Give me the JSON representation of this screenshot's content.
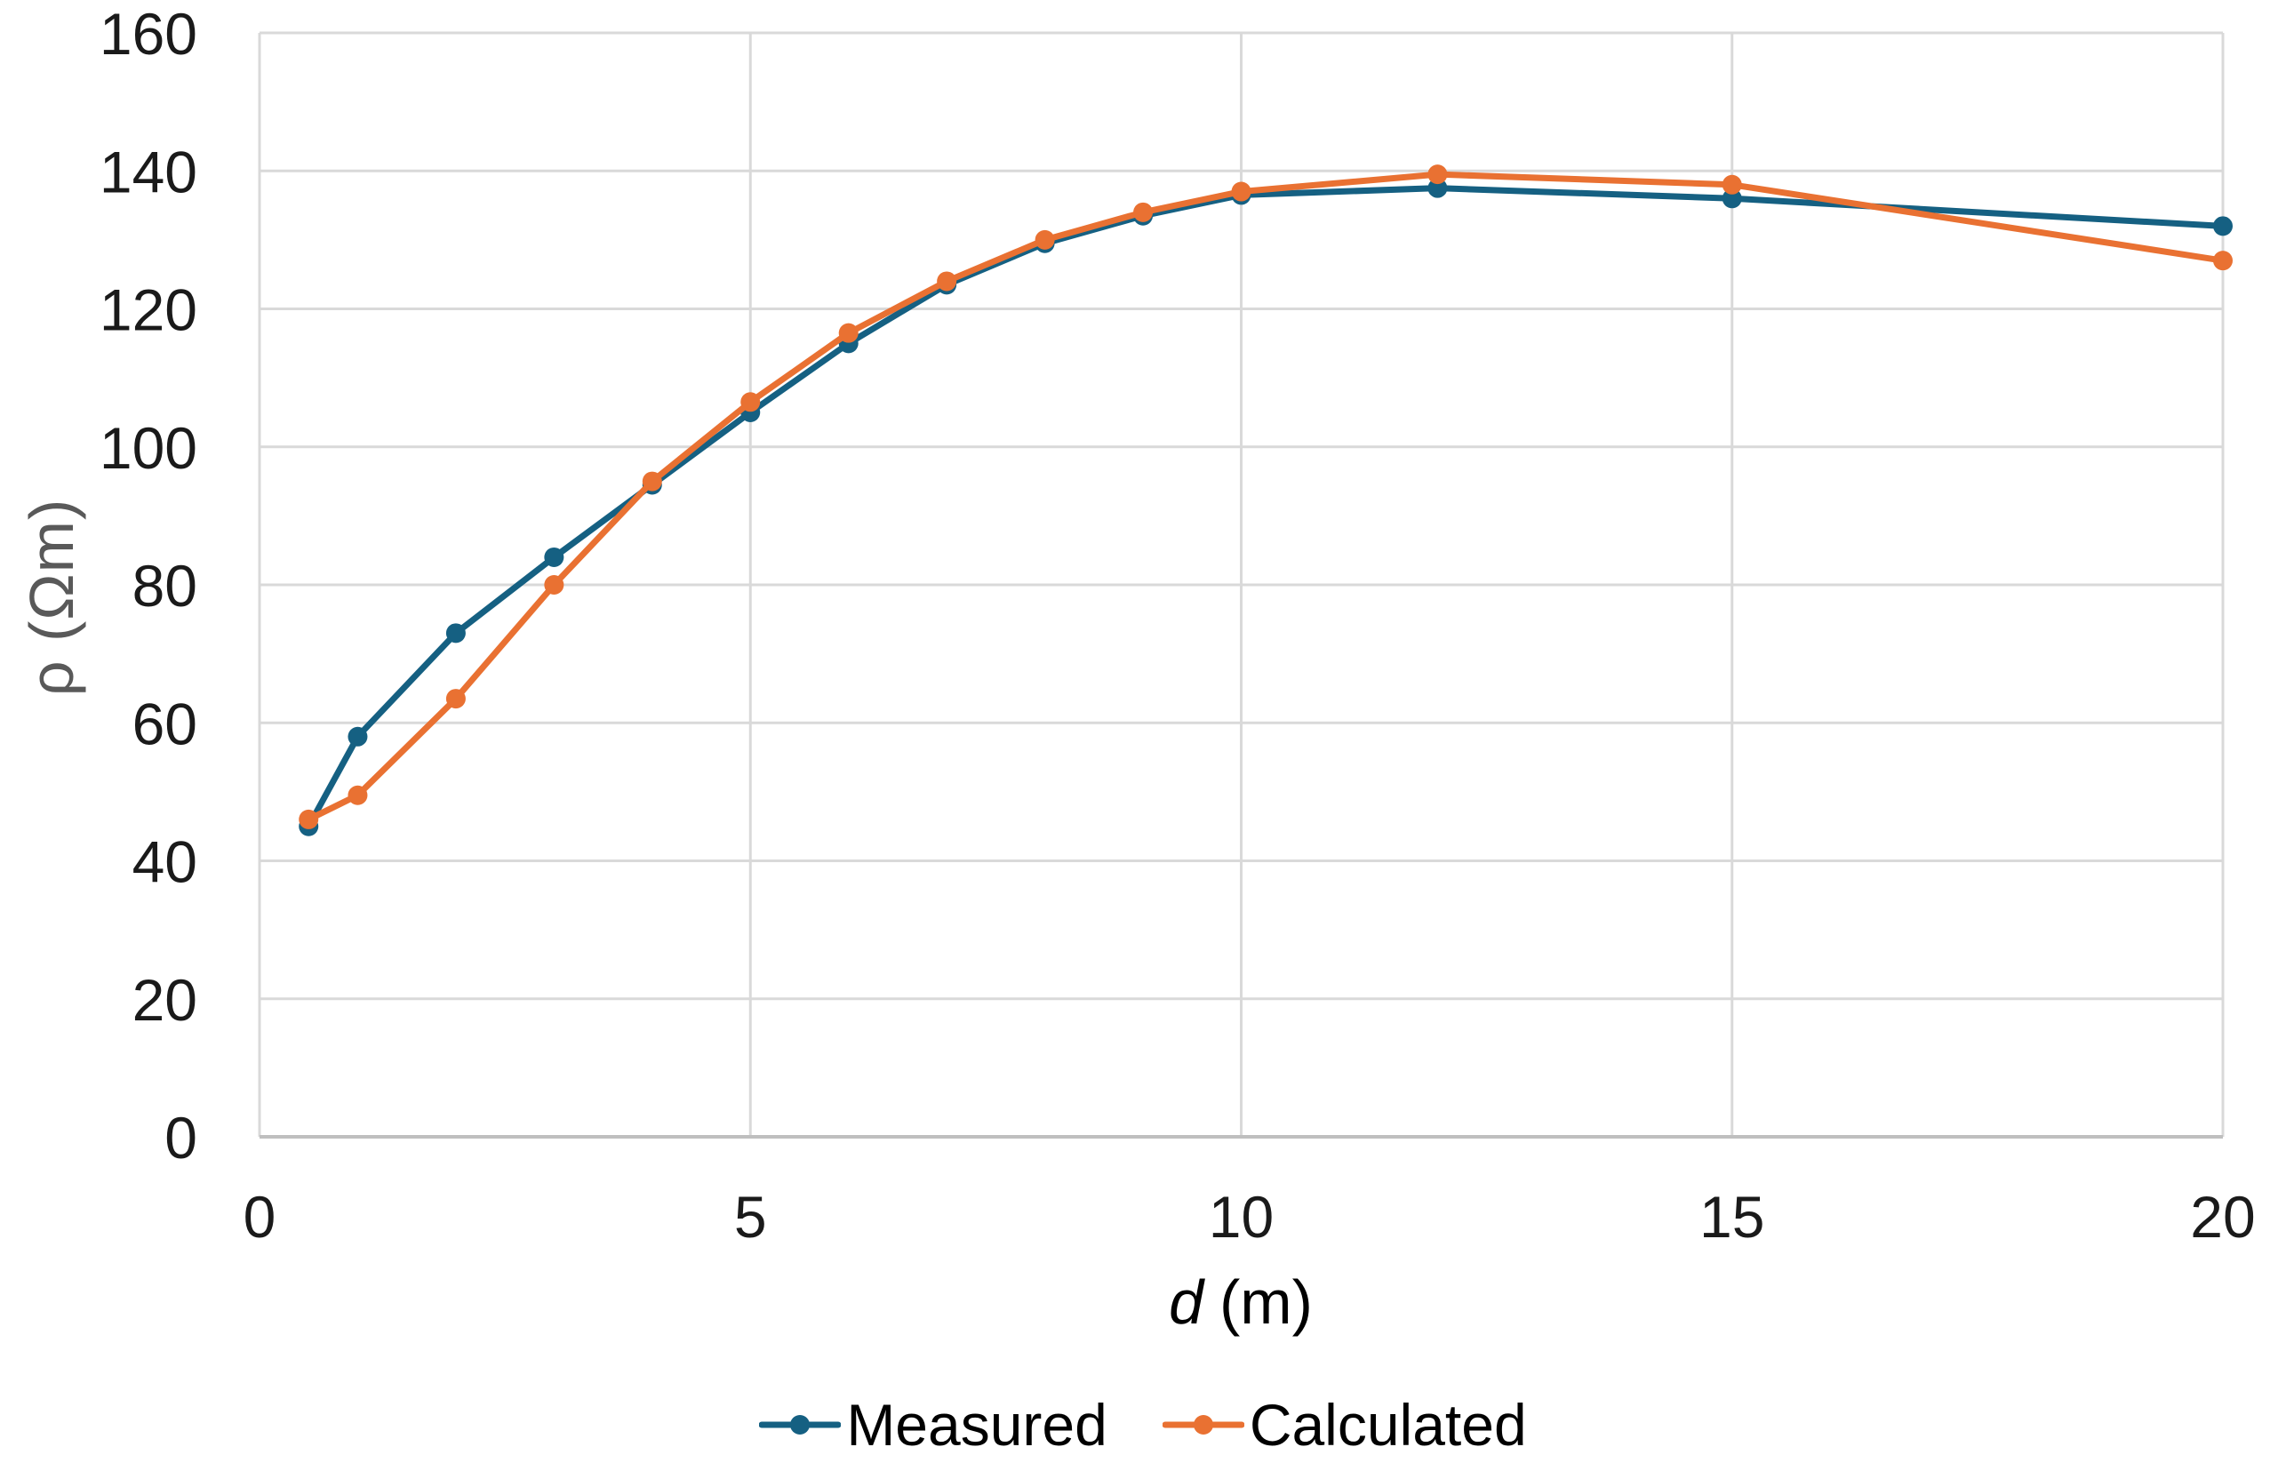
{
  "chart_data": {
    "type": "line",
    "x": [
      0.5,
      1,
      2,
      3,
      4,
      5,
      6,
      7,
      8,
      9,
      10,
      12,
      15,
      20
    ],
    "series": [
      {
        "name": "Measured",
        "color": "#156082",
        "values": [
          45,
          58,
          73,
          84,
          94.5,
          105,
          115,
          123.5,
          129.5,
          133.5,
          136.5,
          137.5,
          136,
          132
        ]
      },
      {
        "name": "Calculated",
        "color": "#E97132",
        "values": [
          46,
          49.5,
          63.5,
          80,
          95,
          106.5,
          116.5,
          124,
          130,
          134,
          137,
          139.5,
          138,
          127
        ]
      }
    ],
    "title": "",
    "xlabel_var": "d",
    "xlabel_unit": "(m)",
    "ylabel": "ρ (Ωm)",
    "xlim": [
      0,
      20
    ],
    "ylim": [
      0,
      160
    ],
    "xticks": [
      0,
      5,
      10,
      15,
      20
    ],
    "yticks": [
      0,
      20,
      40,
      60,
      80,
      100,
      120,
      140,
      160
    ],
    "grid": true,
    "legend_position": "bottom-center"
  },
  "colors": {
    "background": "#FFFFFF",
    "gridline": "#D9D9D9",
    "axis_line": "#BFBFBF",
    "tick_label": "#1A1A1A",
    "x_title": "#000000",
    "y_title": "#595959"
  }
}
